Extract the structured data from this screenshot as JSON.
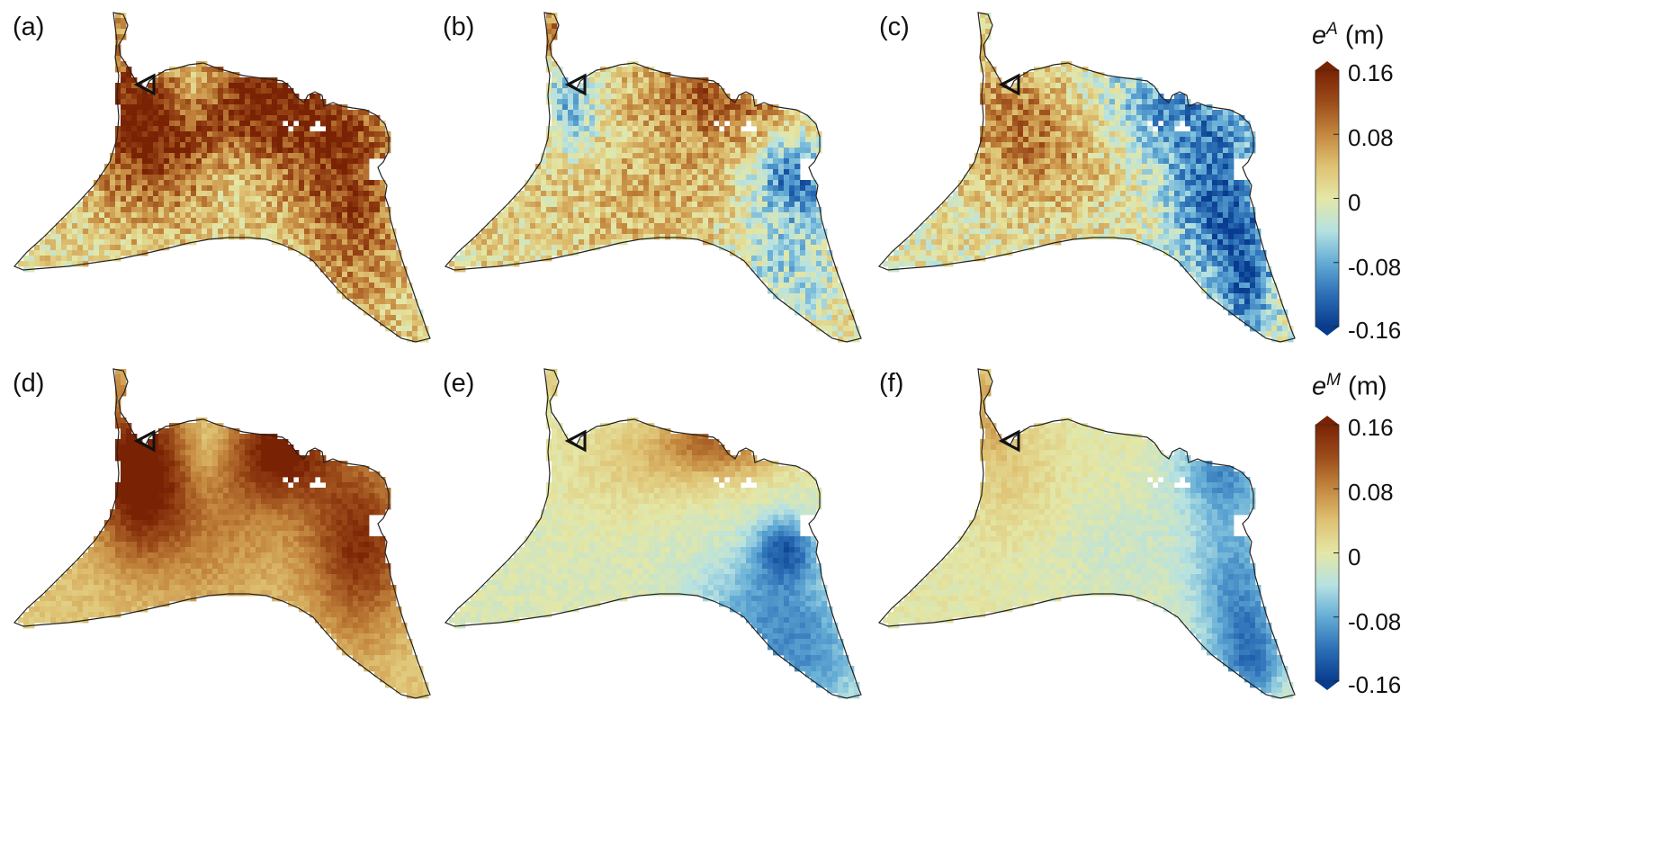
{
  "panels": [
    {
      "label": "(a)",
      "field": "a"
    },
    {
      "label": "(b)",
      "field": "b"
    },
    {
      "label": "(c)",
      "field": "c"
    },
    {
      "label": "(d)",
      "field": "d"
    },
    {
      "label": "(e)",
      "field": "e"
    },
    {
      "label": "(f)",
      "field": "f"
    }
  ],
  "colorbars": [
    {
      "symbol": "e",
      "superscript": "A",
      "unit": "(m)",
      "ticks": [
        "0.16",
        "0.08",
        "0",
        "-0.08",
        "-0.16"
      ]
    },
    {
      "symbol": "e",
      "superscript": "M",
      "unit": "(m)",
      "ticks": [
        "0.16",
        "0.08",
        "0",
        "-0.08",
        "-0.16"
      ]
    }
  ],
  "colormap": [
    "#083c8f",
    "#2c6fb6",
    "#64acd6",
    "#b6e2e2",
    "#e4e7a6",
    "#dfc273",
    "#c4883f",
    "#9c4c1a",
    "#7a2204"
  ],
  "value_range": [
    -0.16,
    0.16
  ]
}
